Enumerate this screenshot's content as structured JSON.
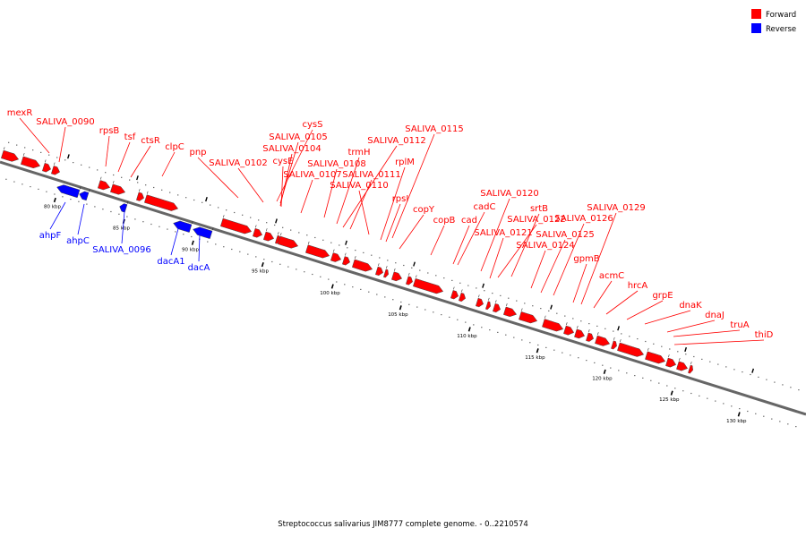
{
  "legend": {
    "forward": {
      "label": "Forward",
      "color": "#ff0000"
    },
    "reverse": {
      "label": "Reverse",
      "color": "#0000ff"
    }
  },
  "caption": "Streptococcus salivarius JIM8777 complete genome. - 0..2210574",
  "scale_labels": [
    "80 kbp",
    "85 kbp",
    "90 kbp",
    "95 kbp",
    "100 kbp",
    "105 kbp",
    "110 kbp",
    "115 kbp",
    "120 kbp",
    "125 kbp",
    "130 kbp"
  ],
  "forward_genes": [
    "mexR",
    "SALIVA_0090",
    "rpsB",
    "tsf",
    "ctsR",
    "clpC",
    "pnp",
    "SALIVA_0102",
    "cysS",
    "SALIVA_0105",
    "SALIVA_0104",
    "cysE",
    "SALIVA_0107",
    "SALIVA_0108",
    "trmH",
    "SALIVA_0112",
    "SALIVA_0111",
    "SALIVA_0110",
    "SALIVA_0115",
    "rplM",
    "rpsI",
    "copY",
    "copB",
    "cadC",
    "cad",
    "SALIVA_0120",
    "srtB",
    "SALIVA_0122",
    "SALIVA_0121",
    "SALIVA_0126",
    "SALIVA_0129",
    "SALIVA_0125",
    "SALIVA_0124",
    "gpmB",
    "acmC",
    "hrcA",
    "grpE",
    "dnaK",
    "dnaJ",
    "truA",
    "thiD"
  ],
  "reverse_genes": [
    "ahpF",
    "ahpC",
    "SALIVA_0096",
    "dacA1",
    "dacA"
  ]
}
